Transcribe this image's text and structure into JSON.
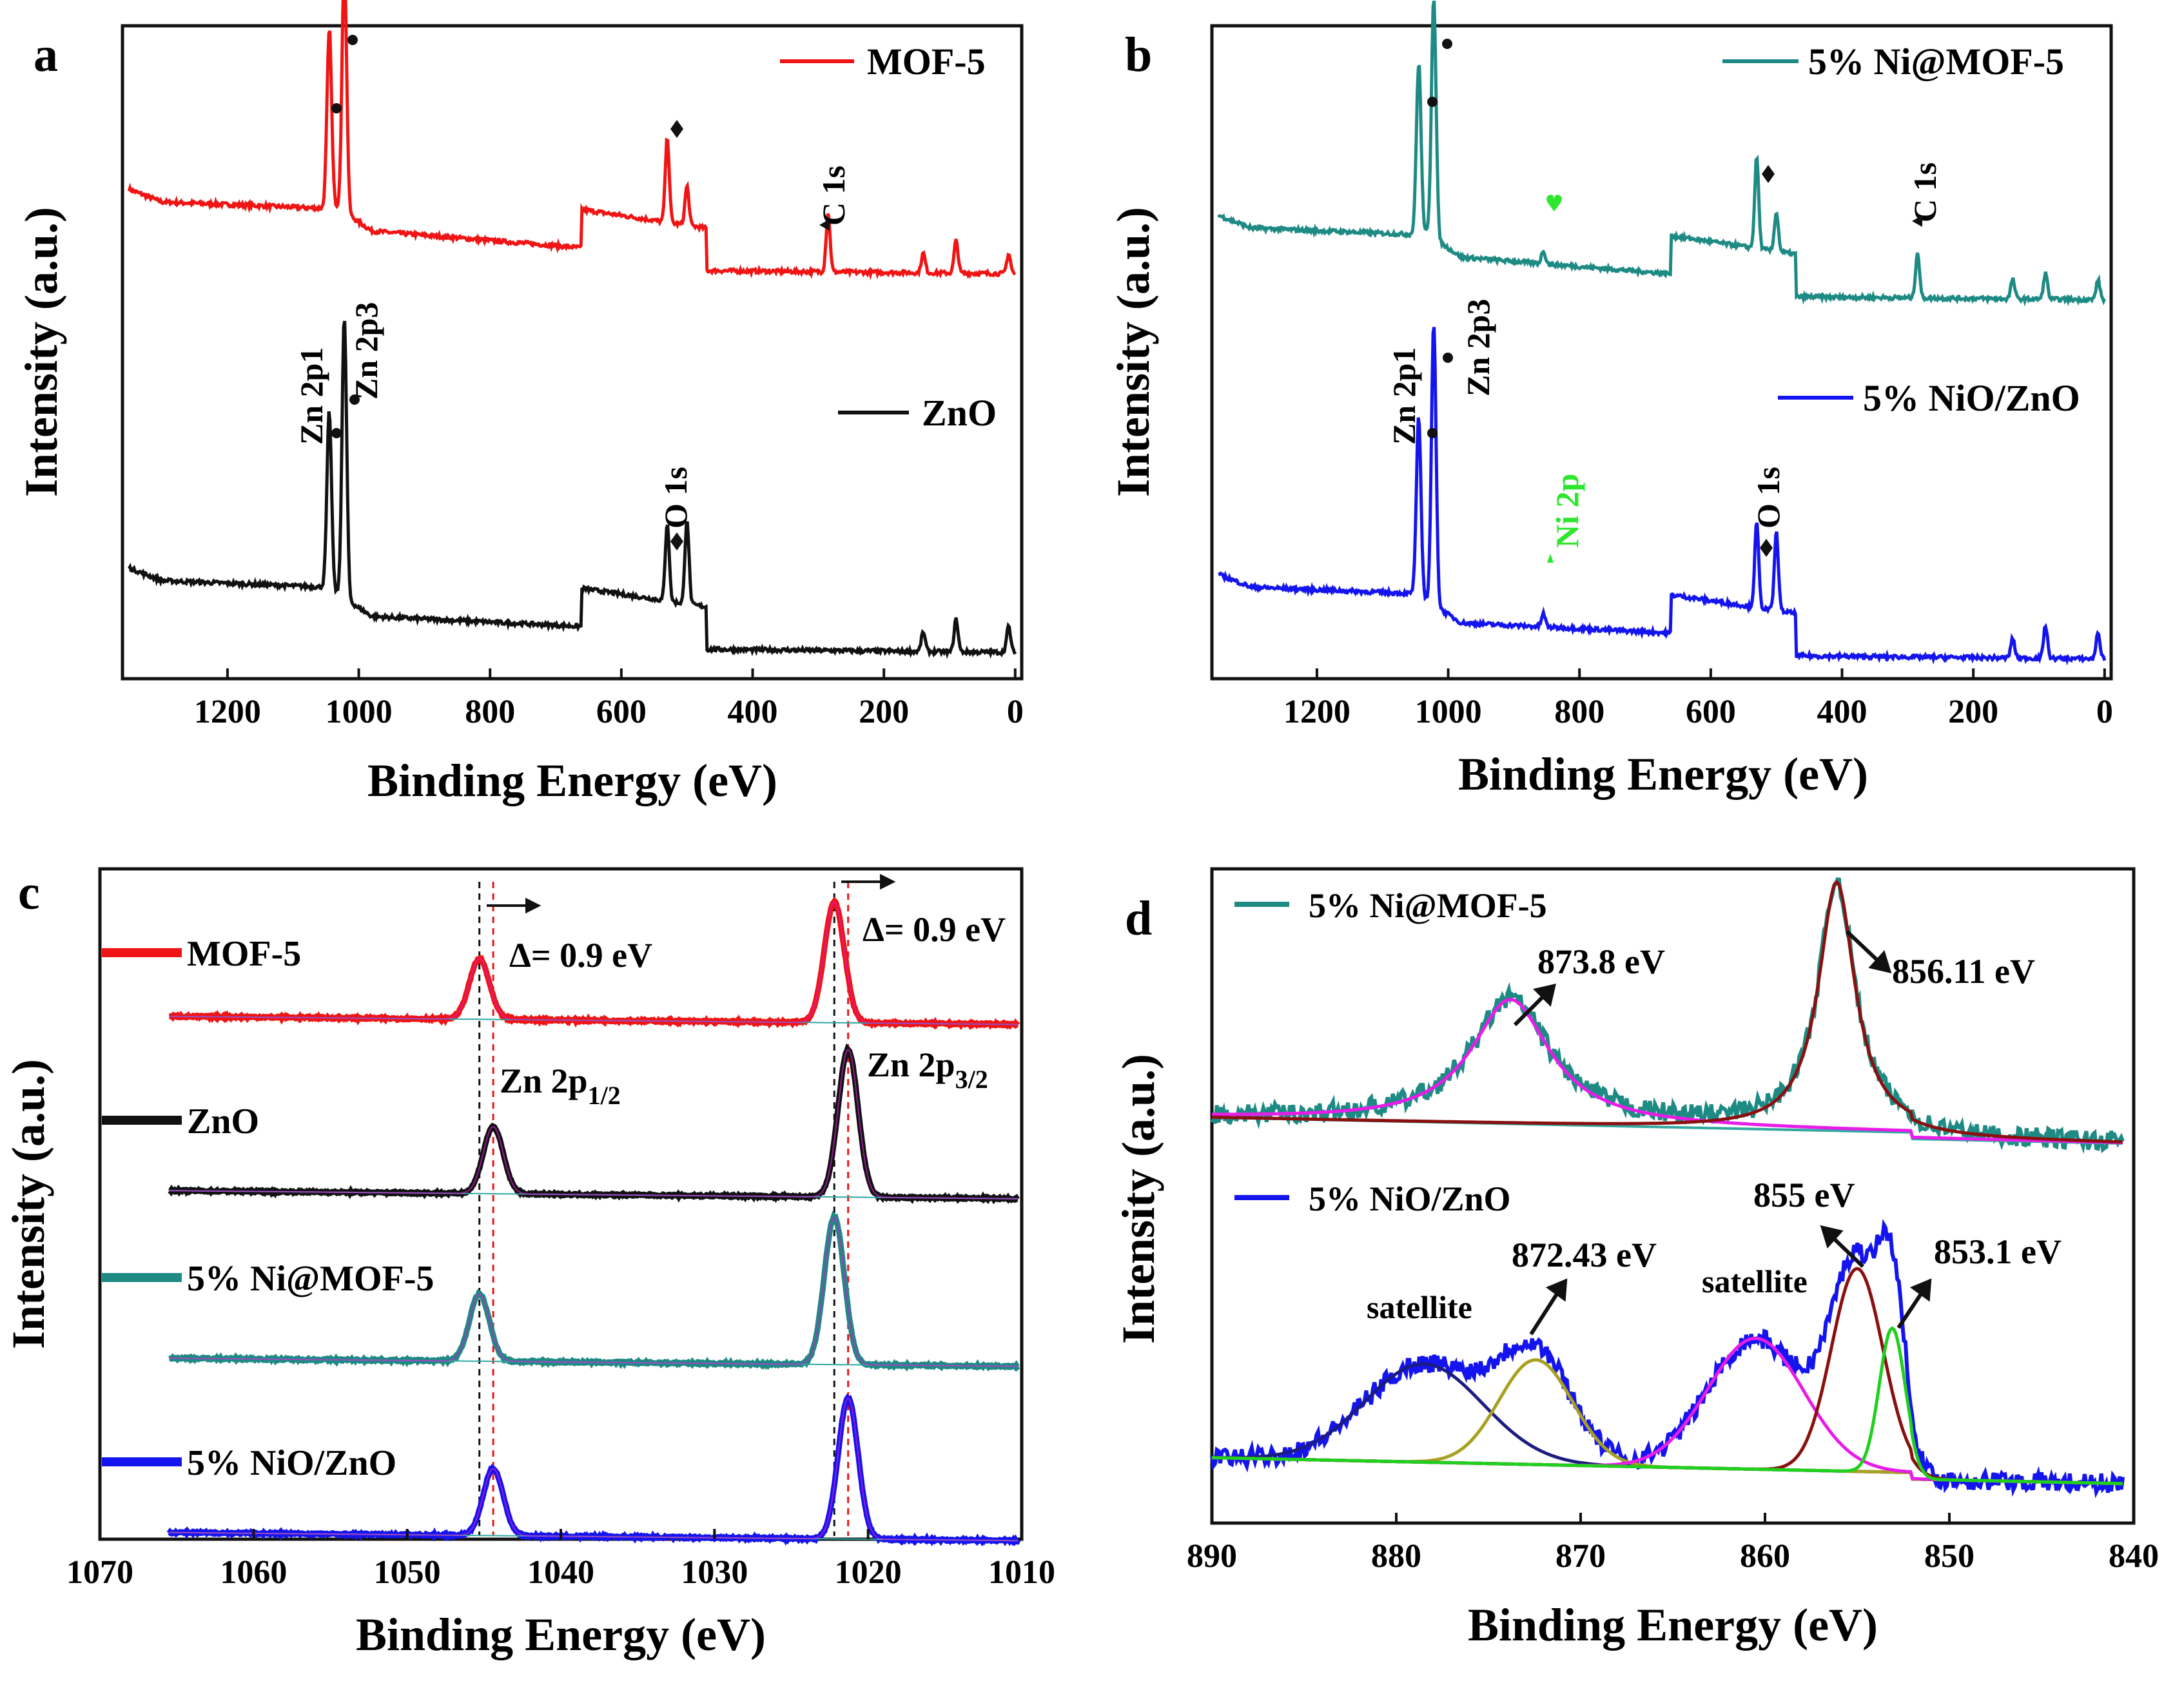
{
  "figure": {
    "panels": [
      "a",
      "b",
      "c",
      "d"
    ],
    "colors": {
      "red": "#f01414",
      "black": "#111111",
      "teal": "#1e8a84",
      "blue": "#1414ee",
      "magenta": "#e81ce8",
      "darkred": "#8a1010",
      "olive": "#a8a020",
      "navy": "#1c1c80",
      "green": "#2ee62e",
      "lightgreen": "#1fd01f"
    }
  },
  "chart_data": [
    {
      "id": "a",
      "type": "line",
      "letter": "a",
      "xlabel": "Binding Energy (eV)",
      "ylabel": "Intensity (a.u.)",
      "xlim": [
        1360,
        -10
      ],
      "xticks": [
        1200,
        1000,
        800,
        600,
        400,
        200,
        0
      ],
      "xtick_labels": [
        "1200",
        "1000",
        "800",
        "600",
        "400",
        "200",
        "0"
      ],
      "series": [
        {
          "name": "MOF-5",
          "color": "#f01414",
          "offset": 0.62,
          "kind": "survey_mof",
          "peaks": [
            [
              1045,
              0.27
            ],
            [
              1022,
              0.38
            ],
            [
              530,
              0.13
            ],
            [
              500,
              0.06
            ],
            [
              285,
              0.09
            ],
            [
              140,
              0.03
            ],
            [
              90,
              0.05
            ],
            [
              10,
              0.03
            ]
          ]
        },
        {
          "name": "ZnO",
          "color": "#111111",
          "offset": 0.04,
          "kind": "survey_zno",
          "peaks": [
            [
              1045,
              0.27
            ],
            [
              1022,
              0.43
            ],
            [
              530,
              0.12
            ],
            [
              500,
              0.13
            ],
            [
              140,
              0.03
            ],
            [
              90,
              0.05
            ],
            [
              10,
              0.04
            ]
          ]
        }
      ],
      "legend": [
        {
          "label": "MOF-5",
          "color": "#f01414"
        },
        {
          "label": "ZnO",
          "color": "#111111"
        }
      ],
      "annotations": [
        {
          "text": "Zn 2p1",
          "x": 1045,
          "rot": true
        },
        {
          "text": "Zn 2p3",
          "x": 1022,
          "rot": true
        },
        {
          "text": "O 1s",
          "x": 530,
          "rot": true
        },
        {
          "text": "C 1s",
          "x": 285,
          "rot": true
        }
      ]
    },
    {
      "id": "b",
      "type": "line",
      "letter": "b",
      "xlabel": "Binding Energy (eV)",
      "ylabel": "Intensity (a.u.)",
      "xlim": [
        1360,
        -10
      ],
      "xticks": [
        1200,
        1000,
        800,
        600,
        400,
        200,
        0
      ],
      "xtick_labels": [
        "1200",
        "1000",
        "800",
        "600",
        "400",
        "200",
        "0"
      ],
      "series": [
        {
          "name": "5% Ni@MOF-5",
          "color": "#1e8a84",
          "offset": 0.58,
          "kind": "survey_mof",
          "peaks": [
            [
              1045,
              0.26
            ],
            [
              1022,
              0.37
            ],
            [
              855,
              0.02
            ],
            [
              530,
              0.14
            ],
            [
              500,
              0.06
            ],
            [
              285,
              0.07
            ],
            [
              140,
              0.03
            ],
            [
              90,
              0.04
            ],
            [
              10,
              0.03
            ]
          ]
        },
        {
          "name": "5% NiO/ZnO",
          "color": "#1414ee",
          "offset": 0.03,
          "kind": "survey_zno",
          "peaks": [
            [
              1045,
              0.27
            ],
            [
              1022,
              0.43
            ],
            [
              855,
              0.02
            ],
            [
              530,
              0.13
            ],
            [
              500,
              0.12
            ],
            [
              140,
              0.03
            ],
            [
              90,
              0.05
            ],
            [
              10,
              0.04
            ]
          ]
        }
      ],
      "legend": [
        {
          "label": "5% Ni@MOF-5",
          "color": "#1e8a84"
        },
        {
          "label": "5% NiO/ZnO",
          "color": "#1414ee"
        }
      ],
      "annotations": [
        {
          "text": "Zn 2p1",
          "x": 1045,
          "rot": true
        },
        {
          "text": "Zn 2p3",
          "x": 1022,
          "rot": true
        },
        {
          "text": "Ni 2p",
          "x": 855,
          "rot": true
        },
        {
          "text": "O 1s",
          "x": 530,
          "rot": true
        },
        {
          "text": "C 1s",
          "x": 285,
          "rot": true
        }
      ]
    },
    {
      "id": "c",
      "type": "line",
      "letter": "c",
      "xlabel": "Binding Energy (eV)",
      "ylabel": "Intensity (a.u.)",
      "xlim": [
        1070,
        1010
      ],
      "xticks": [
        1070,
        1060,
        1050,
        1040,
        1030,
        1020,
        1010
      ],
      "xtick_labels": [
        "1070",
        "1060",
        "1050",
        "1040",
        "1030",
        "1020",
        "1010"
      ],
      "series": [
        {
          "name": "MOF-5",
          "color": "#f01414",
          "offset": 0.78,
          "peaks": [
            [
              1045.3,
              0.09
            ],
            [
              1022.2,
              0.18
            ]
          ]
        },
        {
          "name": "ZnO",
          "color": "#111111",
          "offset": 0.52,
          "peaks": [
            [
              1044.4,
              0.1
            ],
            [
              1021.3,
              0.22
            ]
          ]
        },
        {
          "name": "5% Ni@MOF-5",
          "color": "#1e8a84",
          "offset": 0.27,
          "peaks": [
            [
              1045.3,
              0.1
            ],
            [
              1022.2,
              0.22
            ]
          ]
        },
        {
          "name": "5% NiO/ZnO",
          "color": "#1414ee",
          "offset": 0.01,
          "peaks": [
            [
              1044.4,
              0.1
            ],
            [
              1021.3,
              0.21
            ]
          ]
        }
      ],
      "legend": [
        {
          "label": "MOF-5",
          "color": "#f01414"
        },
        {
          "label": "ZnO",
          "color": "#111111"
        },
        {
          "label": "5% Ni@MOF-5",
          "color": "#1e8a84"
        },
        {
          "label": "5% NiO/ZnO",
          "color": "#1414ee"
        }
      ],
      "reference_lines": [
        {
          "x": 1045.3,
          "color": "#111111"
        },
        {
          "x": 1044.4,
          "color": "#f01414"
        },
        {
          "x": 1022.2,
          "color": "#111111"
        },
        {
          "x": 1021.3,
          "color": "#f01414"
        }
      ],
      "annotations": [
        {
          "text": "Δ= 0.9 eV",
          "x": 1044.0
        },
        {
          "text": "Δ= 0.9 eV",
          "x": 1021.0
        },
        {
          "text": "Zn 2p",
          "sub": "1/2",
          "x": 1044.3
        },
        {
          "text": "Zn 2p",
          "sub": "3/2",
          "x": 1021.2
        }
      ]
    },
    {
      "id": "d",
      "type": "line",
      "letter": "d",
      "xlabel": "Binding Energy (eV)",
      "ylabel": "Intensity (a.u.)",
      "xlim": [
        890,
        840
      ],
      "xticks": [
        890,
        880,
        870,
        860,
        850,
        840
      ],
      "xtick_labels": [
        "890",
        "880",
        "870",
        "860",
        "850",
        "840"
      ],
      "series": [
        {
          "name": "5% Ni@MOF-5",
          "color": "#1e8a84",
          "offset": 0.62,
          "components": [
            {
              "center": 873.8,
              "height": 0.19,
              "width": 2.6,
              "color": "#e81ce8"
            },
            {
              "center": 856.11,
              "height": 0.38,
              "width": 1.2,
              "color": "#8a1010"
            }
          ]
        },
        {
          "name": "5% NiO/ZnO",
          "color": "#1414ee",
          "offset": 0.1,
          "components": [
            {
              "center": 878.5,
              "height": 0.15,
              "width": 3.2,
              "color": "#1c1c80"
            },
            {
              "center": 872.43,
              "height": 0.16,
              "width": 2.0,
              "color": "#a8a020"
            },
            {
              "center": 860.5,
              "height": 0.2,
              "width": 2.6,
              "color": "#e81ce8"
            },
            {
              "center": 855,
              "height": 0.31,
              "width": 1.4,
              "color": "#8a1010"
            },
            {
              "center": 853.1,
              "height": 0.22,
              "width": 0.7,
              "color": "#1fd01f"
            }
          ]
        }
      ],
      "legend": [
        {
          "label": "5% Ni@MOF-5",
          "color": "#1e8a84"
        },
        {
          "label": "5% NiO/ZnO",
          "color": "#1414ee"
        }
      ],
      "annotations": [
        {
          "text": "873.8 eV",
          "x": 873.8
        },
        {
          "text": "856.11 eV",
          "x": 856.11
        },
        {
          "text": "872.43 eV",
          "x": 872.43
        },
        {
          "text": "855 eV",
          "x": 855
        },
        {
          "text": "853.1 eV",
          "x": 853.1
        },
        {
          "text": "satellite",
          "x": 878.5
        },
        {
          "text": "satellite",
          "x": 860.5
        }
      ]
    }
  ]
}
